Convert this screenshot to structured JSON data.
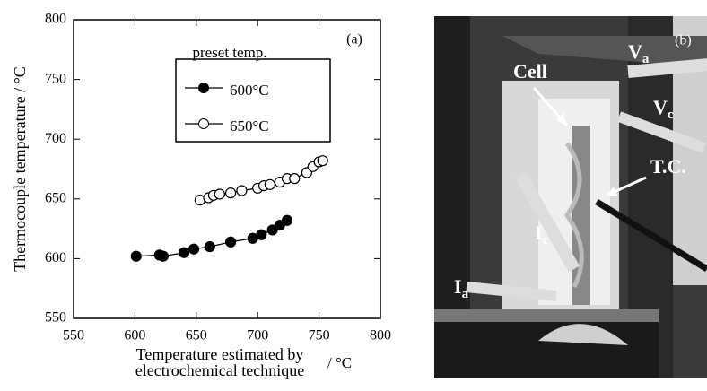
{
  "chart_data": {
    "type": "scatter",
    "annotation": "(a)",
    "ylabel": "Thermocouple  temperature / °C",
    "xlabel_lines": [
      "Temperature estimated by",
      "electrochemical technique"
    ],
    "xlabel_unit": "/ °C",
    "legend_title": "preset temp.",
    "xlim": [
      550,
      800
    ],
    "xticks": [
      550,
      600,
      650,
      700,
      750,
      800
    ],
    "ylim": [
      550,
      800
    ],
    "yticks": [
      550,
      600,
      650,
      700,
      750,
      800
    ],
    "series": [
      {
        "name": "600°C",
        "color": "#000000",
        "marker": "filled",
        "x": [
          601,
          620,
          623,
          640,
          648,
          661,
          678,
          696,
          703,
          712,
          718,
          724
        ],
        "values": [
          602,
          603,
          602,
          605,
          608,
          610,
          614,
          617,
          620,
          624,
          628,
          632
        ]
      },
      {
        "name": "650°C",
        "color": "#000000",
        "marker": "open",
        "x": [
          653,
          660,
          664,
          669,
          678,
          687,
          700,
          705,
          710,
          718,
          724,
          730,
          740,
          745,
          750,
          753
        ],
        "values": [
          649,
          651,
          653,
          654,
          655,
          657,
          659,
          661,
          662,
          664,
          667,
          667,
          672,
          677,
          681,
          682
        ]
      }
    ]
  },
  "photo": {
    "panel_label": "(b)",
    "labels": [
      {
        "text": "V",
        "sub": "a"
      },
      {
        "text": "Cell"
      },
      {
        "text": "V",
        "sub": "c"
      },
      {
        "text": "T.C."
      },
      {
        "text": "I",
        "sub": "c"
      },
      {
        "text": "I",
        "sub": "a"
      }
    ]
  }
}
